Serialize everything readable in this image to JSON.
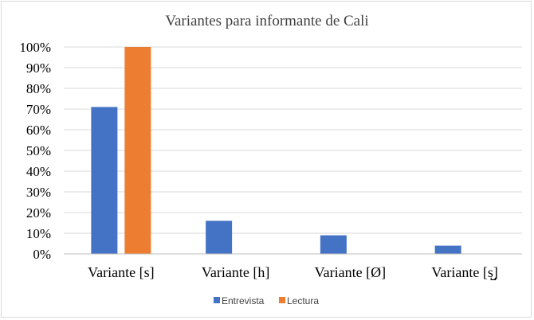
{
  "chart_data": {
    "type": "bar",
    "title": "Variantes para informante de Cali",
    "categories": [
      "Variante [s]",
      "Variante [h]",
      "Variante [Ø]",
      "Variante [s̺]"
    ],
    "series": [
      {
        "name": "Entrevista",
        "color": "#4472C4",
        "values": [
          71,
          16,
          9,
          4
        ]
      },
      {
        "name": "Lectura",
        "color": "#ED7D31",
        "values": [
          100,
          0,
          0,
          0
        ]
      }
    ],
    "ylim": [
      0,
      100
    ],
    "yticks": [
      "0%",
      "10%",
      "20%",
      "30%",
      "40%",
      "50%",
      "60%",
      "70%",
      "80%",
      "90%",
      "100%"
    ],
    "grid": true,
    "legend_position": "bottom"
  }
}
